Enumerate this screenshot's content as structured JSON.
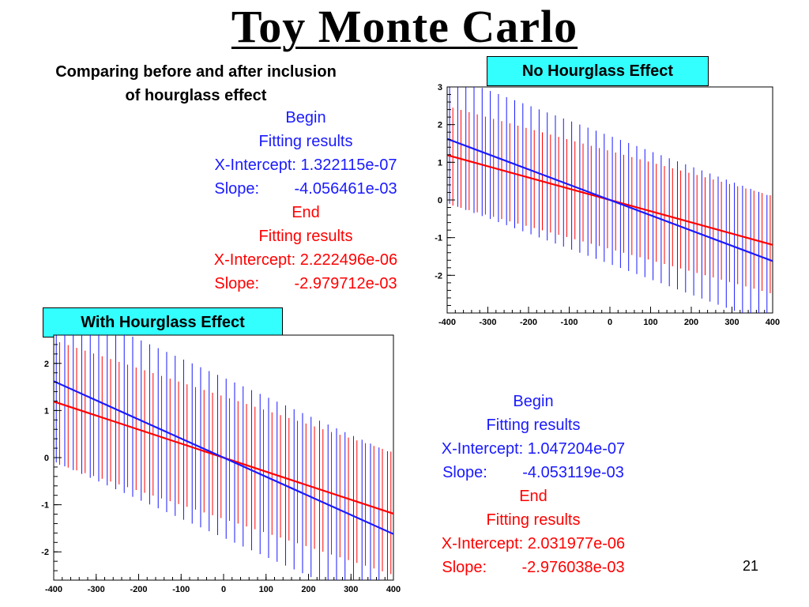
{
  "slide": {
    "title": "Toy Monte Carlo",
    "subtitle_line1": "Comparing before and after inclusion",
    "subtitle_line2": "of hourglass effect",
    "page_number": "21"
  },
  "labels": {
    "no_hourglass": "No Hourglass Effect",
    "with_hourglass": "With Hourglass Effect"
  },
  "fit_top": {
    "begin": "Begin",
    "begin_fitting": "Fitting results",
    "begin_intercept": "X-Intercept: 1.322115e-07",
    "begin_slope": "Slope:        -4.056461e-03",
    "end": "End",
    "end_fitting": "Fitting results",
    "end_intercept": "X-Intercept: 2.222496e-06",
    "end_slope": "Slope:        -2.979712e-03"
  },
  "fit_bottom": {
    "begin": "Begin",
    "begin_fitting": "Fitting results",
    "begin_intercept": "X-Intercept: 1.047204e-07",
    "begin_slope": "Slope:        -4.053119e-03",
    "end": "End",
    "end_fitting": "Fitting results",
    "end_intercept": "X-Intercept: 2.031977e-06",
    "end_slope": "Slope:        -2.976038e-03"
  },
  "chart_data": [
    {
      "type": "line",
      "title": "",
      "xlabel": "",
      "ylabel": "",
      "xlim": [
        -400,
        400
      ],
      "ylim": [
        -3,
        3
      ],
      "xticks": [
        -400,
        -300,
        -200,
        -100,
        0,
        100,
        200,
        300,
        400
      ],
      "yticks": [
        -2,
        -1,
        0,
        1,
        2,
        3
      ],
      "grid": false,
      "colors": {
        "begin": "#1a1aff",
        "end": "#ff0000"
      },
      "series": [
        {
          "key": "begin",
          "intercept": 1.322115e-07,
          "slope": -0.004056461,
          "error_half_width": 1.7
        },
        {
          "key": "end",
          "intercept": 2.222496e-06,
          "slope": -0.002979712,
          "error_half_width": 1.3
        }
      ],
      "x_points": [
        -390,
        -370,
        -350,
        -330,
        -310,
        -290,
        -270,
        -250,
        -230,
        -210,
        -190,
        -170,
        -150,
        -130,
        -110,
        -90,
        -70,
        -50,
        -30,
        -10,
        10,
        30,
        50,
        70,
        90,
        110,
        130,
        150,
        170,
        190,
        210,
        230,
        250,
        270,
        290,
        310,
        330,
        350,
        370,
        390
      ]
    },
    {
      "type": "line",
      "title": "",
      "xlabel": "",
      "ylabel": "",
      "xlim": [
        -400,
        400
      ],
      "ylim": [
        -2.6,
        2.6
      ],
      "xticks": [
        -400,
        -300,
        -200,
        -100,
        0,
        100,
        200,
        300,
        400
      ],
      "yticks": [
        -2,
        -1,
        0,
        1,
        2
      ],
      "grid": false,
      "colors": {
        "begin": "#1a1aff",
        "end": "#ff0000"
      },
      "series": [
        {
          "key": "begin",
          "intercept": 1.047204e-07,
          "slope": -0.004053119,
          "error_half_width": 1.7
        },
        {
          "key": "end",
          "intercept": 2.031977e-06,
          "slope": -0.002976038,
          "error_half_width": 1.3
        }
      ],
      "x_points": [
        -390,
        -370,
        -350,
        -330,
        -310,
        -290,
        -270,
        -250,
        -230,
        -210,
        -190,
        -170,
        -150,
        -130,
        -110,
        -90,
        -70,
        -50,
        -30,
        -10,
        10,
        30,
        50,
        70,
        90,
        110,
        130,
        150,
        170,
        190,
        210,
        230,
        250,
        270,
        290,
        310,
        330,
        350,
        370,
        390
      ]
    }
  ]
}
